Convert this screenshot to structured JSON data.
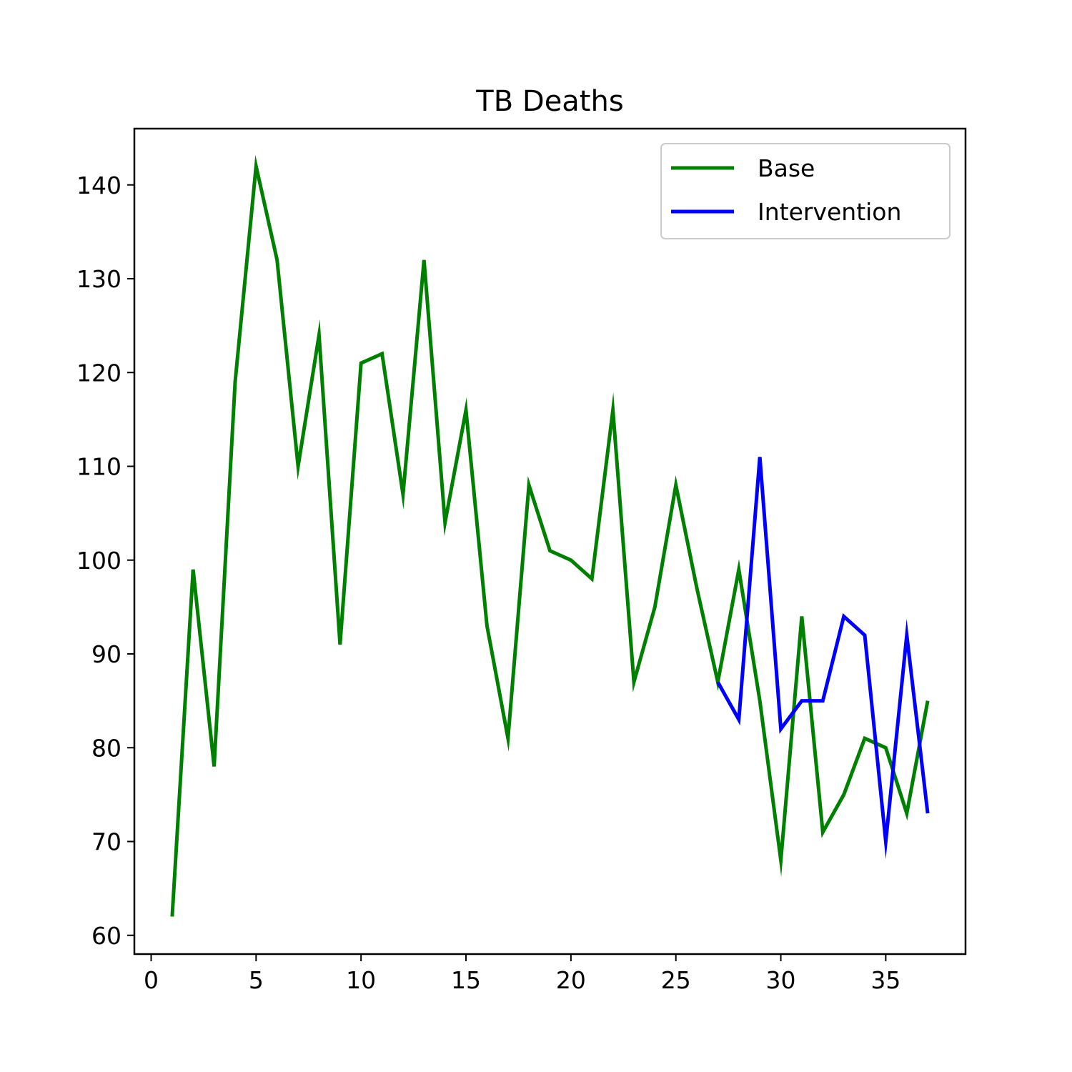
{
  "chart_data": {
    "type": "line",
    "title": "TB Deaths",
    "xlabel": "",
    "ylabel": "",
    "xlim": [
      -0.8,
      38.8
    ],
    "ylim": [
      58,
      146
    ],
    "xticks": [
      0,
      5,
      10,
      15,
      20,
      25,
      30,
      35
    ],
    "yticks": [
      60,
      70,
      80,
      90,
      100,
      110,
      120,
      130,
      140
    ],
    "grid": false,
    "legend_position": "top-right",
    "series": [
      {
        "name": "Base",
        "color": "#008000",
        "x": [
          1,
          2,
          3,
          4,
          5,
          6,
          7,
          8,
          9,
          10,
          11,
          12,
          13,
          14,
          15,
          16,
          17,
          18,
          19,
          20,
          21,
          22,
          23,
          24,
          25,
          26,
          27,
          28,
          29,
          30,
          31,
          32,
          33,
          34,
          35,
          36,
          37
        ],
        "values": [
          62,
          99,
          78,
          119,
          142,
          132,
          110,
          124,
          91,
          121,
          122,
          107,
          132,
          104,
          116,
          93,
          81,
          108,
          101,
          100,
          98,
          116,
          87,
          95,
          108,
          97,
          87,
          99,
          85,
          68,
          94,
          71,
          75,
          81,
          80,
          73,
          85
        ]
      },
      {
        "name": "Intervention",
        "color": "#0000ff",
        "x": [
          27,
          28,
          29,
          30,
          31,
          32,
          33,
          34,
          35,
          36,
          37
        ],
        "values": [
          87,
          83,
          111,
          82,
          85,
          85,
          94,
          92,
          70,
          92,
          73
        ]
      }
    ]
  }
}
